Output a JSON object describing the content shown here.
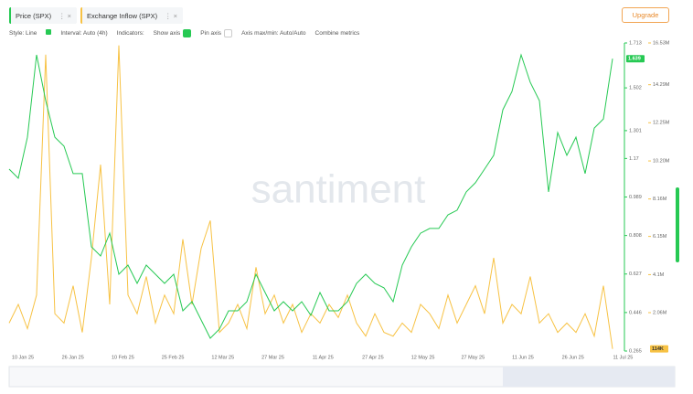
{
  "toolbar": {
    "metrics": [
      "Price (SPX)",
      "Exchange Inflow (SPX)"
    ],
    "upgrade": "Upgrade",
    "options": [
      "Style: Line",
      "Interval: Auto (4h)",
      "Indicators:",
      "Show axis",
      "Pin axis",
      "Axis max/min: Auto/Auto",
      "Combine metrics"
    ]
  },
  "watermark": "santiment",
  "chart_data": {
    "type": "line",
    "xticks": [
      "10 Jan 25",
      "26 Jan 25",
      "10 Feb 25",
      "25 Feb 25",
      "12 Mar 25",
      "27 Mar 25",
      "11 Apr 25",
      "27 Apr 25",
      "12 May 25",
      "27 May 25",
      "11 Jun 25",
      "26 Jun 25",
      "11 Jul 25"
    ],
    "ylim": [
      0.265,
      1.713
    ],
    "yticks": [
      0.265,
      0.446,
      0.627,
      0.808,
      0.989,
      1.17,
      1.301,
      1.502,
      1.713
    ],
    "y2lim": [
      0,
      16530000
    ],
    "y2ticks": [
      {
        "value": 2060000,
        "label": "2.06M"
      },
      {
        "value": 4100000,
        "label": "4.1M"
      },
      {
        "value": 6150000,
        "label": "6.15M"
      },
      {
        "value": 8160000,
        "label": "8.16M"
      },
      {
        "value": 10200000,
        "label": "10.20M"
      },
      {
        "value": 12250000,
        "label": "12.25M"
      },
      {
        "value": 14290000,
        "label": "14.29M"
      },
      {
        "value": 16530000,
        "label": "16.53M"
      }
    ],
    "series": [
      {
        "name": "Price (SPX)",
        "color": "#26c953",
        "last_label": "1.639",
        "values": [
          1.12,
          1.077,
          1.27,
          1.657,
          1.442,
          1.27,
          1.228,
          1.099,
          1.099,
          0.755,
          0.712,
          0.819,
          0.626,
          0.669,
          0.583,
          0.669,
          0.626,
          0.583,
          0.626,
          0.454,
          0.497,
          0.411,
          0.325,
          0.368,
          0.454,
          0.454,
          0.497,
          0.626,
          0.54,
          0.454,
          0.497,
          0.454,
          0.497,
          0.433,
          0.54,
          0.454,
          0.454,
          0.497,
          0.583,
          0.626,
          0.583,
          0.562,
          0.497,
          0.669,
          0.755,
          0.819,
          0.841,
          0.841,
          0.905,
          0.927,
          1.013,
          1.056,
          1.12,
          1.185,
          1.399,
          1.485,
          1.657,
          1.528,
          1.442,
          1.013,
          1.292,
          1.185,
          1.27,
          1.099,
          1.313,
          1.356,
          1.639
        ]
      },
      {
        "name": "Exchange Inflow (SPX)",
        "color": "#f7c244",
        "axis": "y2",
        "last_label": "114K",
        "values": [
          1500000,
          2500000,
          1200000,
          3000000,
          15900000,
          2000000,
          1500000,
          3500000,
          1000000,
          5000000,
          10000000,
          2500000,
          16400000,
          3000000,
          2000000,
          4000000,
          1500000,
          3000000,
          2000000,
          6000000,
          2500000,
          5500000,
          7000000,
          1000000,
          1500000,
          2500000,
          1200000,
          4500000,
          2000000,
          3000000,
          1500000,
          2500000,
          1000000,
          2000000,
          1500000,
          2500000,
          1800000,
          3000000,
          1500000,
          800000,
          2000000,
          1000000,
          800000,
          1500000,
          1000000,
          2500000,
          2000000,
          1200000,
          3000000,
          1500000,
          2500000,
          3500000,
          2000000,
          5000000,
          1500000,
          2500000,
          2000000,
          4000000,
          1500000,
          2000000,
          1000000,
          1500000,
          1000000,
          2000000,
          800000,
          3500000,
          114000
        ]
      }
    ]
  }
}
